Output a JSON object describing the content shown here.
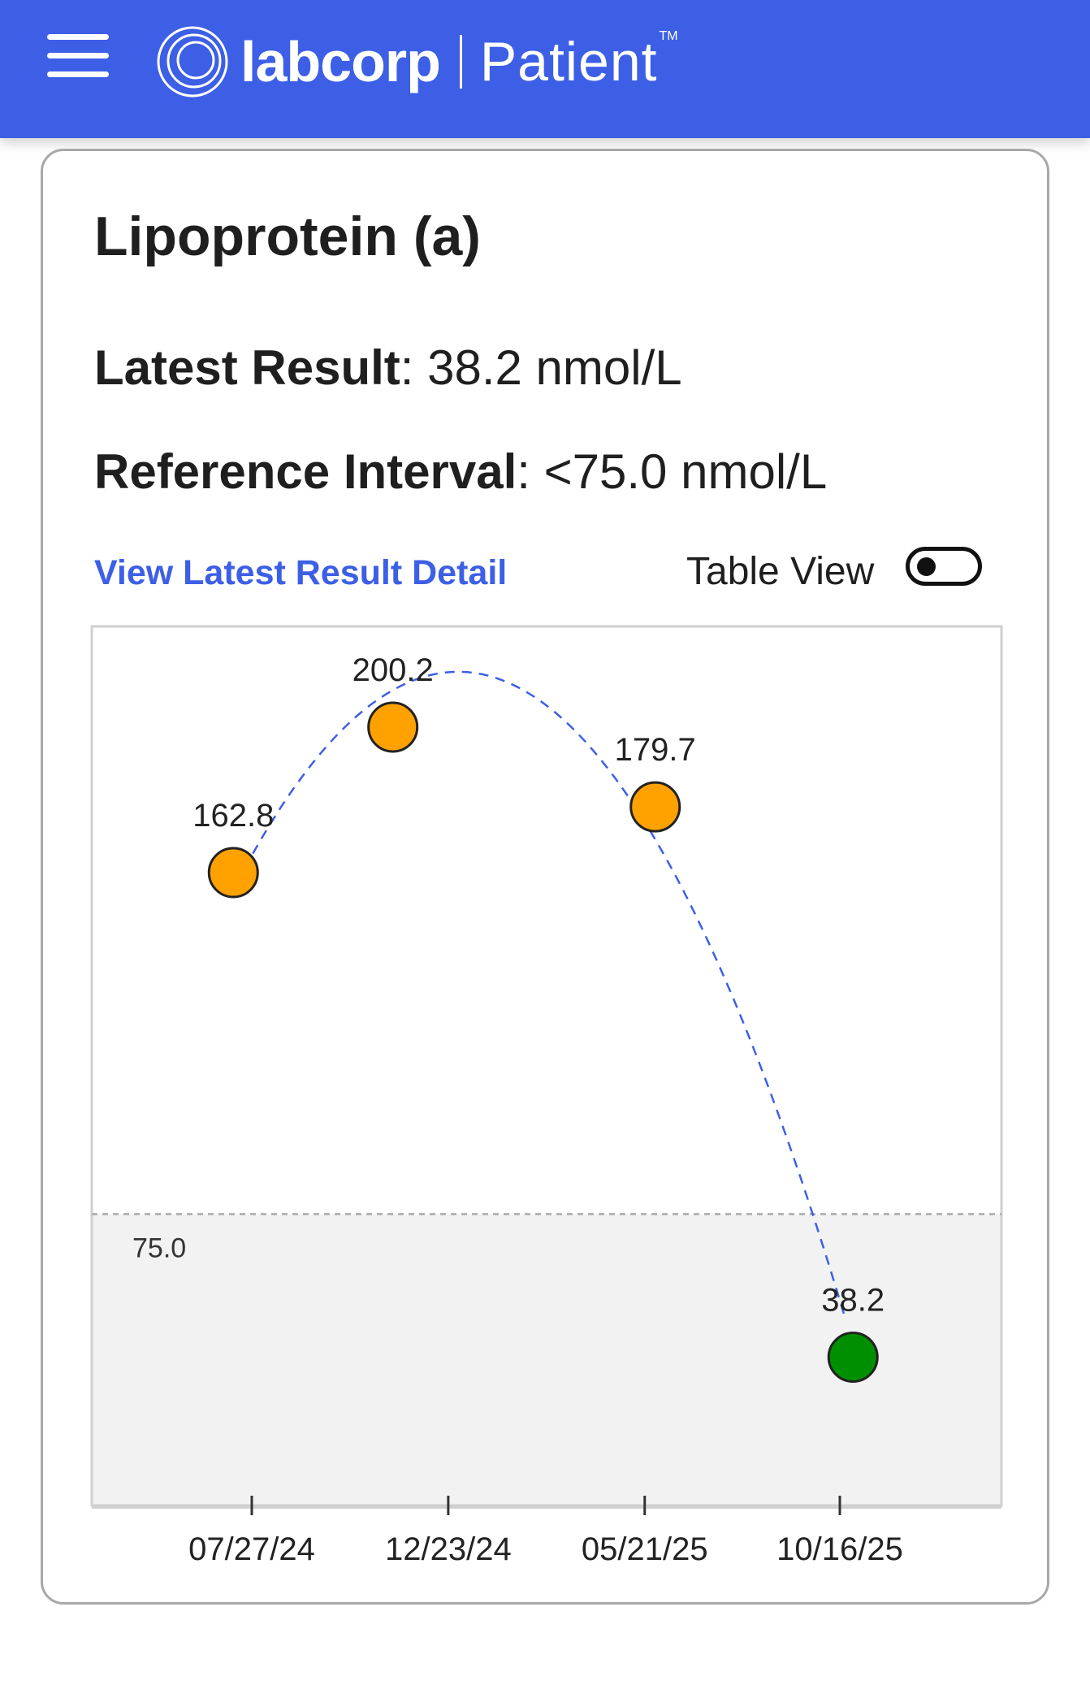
{
  "header": {
    "brand_name": "labcorp",
    "brand_sub": "Patient",
    "trademark": "TM",
    "bg_color": "#3d5fe6"
  },
  "card": {
    "title": "Lipoprotein (a)",
    "latest_label": "Latest Result",
    "latest_value": "38.2 nmol/L",
    "ref_label": "Reference Interval",
    "ref_value": "<75.0 nmol/L",
    "detail_link": "View Latest Result Detail",
    "table_view_label": "Table View",
    "table_view_on": false
  },
  "chart_data": {
    "type": "scatter",
    "points": [
      {
        "date": "2024-07-13",
        "value": 162.8,
        "label": "162.8",
        "status": "high"
      },
      {
        "date": "2024-11-11",
        "value": 200.2,
        "label": "200.2",
        "status": "high"
      },
      {
        "date": "2025-05-29",
        "value": 179.7,
        "label": "179.7",
        "status": "high"
      },
      {
        "date": "2025-10-26",
        "value": 38.2,
        "label": "38.2",
        "status": "normal"
      }
    ],
    "trend_line": "dashed smooth curve",
    "x_ticks": [
      {
        "date": "2024-07-27",
        "label": "07/27/24"
      },
      {
        "date": "2024-12-23",
        "label": "12/23/24"
      },
      {
        "date": "2025-05-21",
        "label": "05/21/25"
      },
      {
        "date": "2025-10-16",
        "label": "10/16/25"
      }
    ],
    "reference_line": {
      "value": 75.0,
      "label": "75.0"
    },
    "colors": {
      "high": "#ffa200",
      "normal": "#008f00",
      "trend": "#3d5fe6",
      "reference_band": "#f2f2f2"
    }
  }
}
